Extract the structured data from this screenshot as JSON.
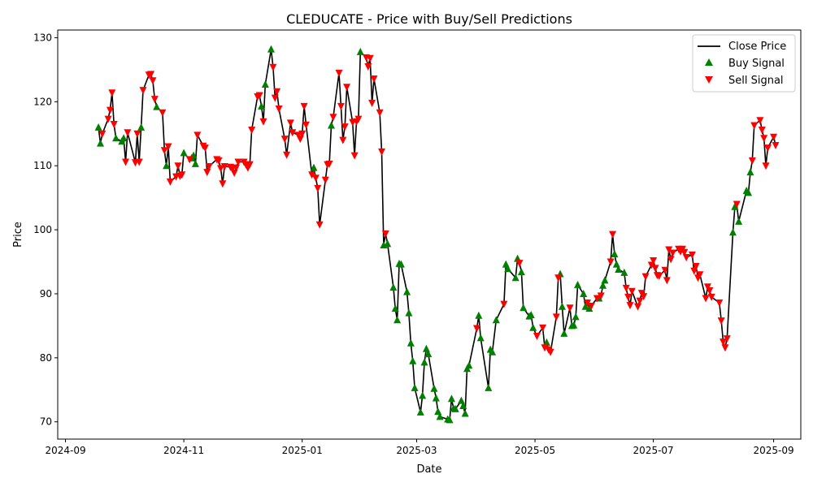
{
  "chart_data": {
    "type": "line",
    "title": "CLEDUCATE - Price with Buy/Sell Predictions",
    "xlabel": "Date",
    "ylabel": "Price",
    "xlim": [
      "2024-08-28",
      "2025-09-15"
    ],
    "ylim": [
      67.3,
      131.2
    ],
    "x_ticks": [
      {
        "date": "2024-09-01",
        "label": "2024-09"
      },
      {
        "date": "2024-11-01",
        "label": "2024-11"
      },
      {
        "date": "2025-01-01",
        "label": "2025-01"
      },
      {
        "date": "2025-03-01",
        "label": "2025-03"
      },
      {
        "date": "2025-05-01",
        "label": "2025-05"
      },
      {
        "date": "2025-07-01",
        "label": "2025-07"
      },
      {
        "date": "2025-09-01",
        "label": "2025-09"
      }
    ],
    "y_ticks": [
      70,
      80,
      90,
      100,
      110,
      120,
      130
    ],
    "grid": false,
    "legend_position": "top-right",
    "series": [
      {
        "name": "Close Price",
        "kind": "line",
        "color": "#000000"
      },
      {
        "name": "Buy Signal",
        "kind": "marker",
        "marker": "triangle-up",
        "color": "#008000"
      },
      {
        "name": "Sell Signal",
        "kind": "marker",
        "marker": "triangle-down",
        "color": "#ff0000"
      }
    ],
    "points": [
      [
        "2024-09-18",
        116.0,
        "B"
      ],
      [
        "2024-09-19",
        113.5,
        "B"
      ],
      [
        "2024-09-20",
        115.0,
        "S"
      ],
      [
        "2024-09-23",
        117.3,
        "S"
      ],
      [
        "2024-09-24",
        118.7,
        "S"
      ],
      [
        "2024-09-25",
        121.4,
        "S"
      ],
      [
        "2024-09-26",
        116.5,
        "S"
      ],
      [
        "2024-09-27",
        114.3,
        "B"
      ],
      [
        "2024-09-30",
        113.8,
        "B"
      ],
      [
        "2024-10-01",
        114.3,
        "B"
      ],
      [
        "2024-10-02",
        110.6,
        "S"
      ],
      [
        "2024-10-03",
        115.2,
        "S"
      ],
      [
        "2024-10-07",
        110.5,
        "S"
      ],
      [
        "2024-10-08",
        115.0,
        "S"
      ],
      [
        "2024-10-09",
        110.6,
        "S"
      ],
      [
        "2024-10-10",
        116.0,
        "B"
      ],
      [
        "2024-10-11",
        121.8,
        "S"
      ],
      [
        "2024-10-14",
        124.2,
        "S"
      ],
      [
        "2024-10-15",
        124.3,
        "S"
      ],
      [
        "2024-10-16",
        123.3,
        "S"
      ],
      [
        "2024-10-17",
        120.4,
        "S"
      ],
      [
        "2024-10-18",
        119.2,
        "B"
      ],
      [
        "2024-10-21",
        118.3,
        "S"
      ],
      [
        "2024-10-22",
        112.4,
        "S"
      ],
      [
        "2024-10-23",
        110.0,
        "B"
      ],
      [
        "2024-10-24",
        113.0,
        "S"
      ],
      [
        "2024-10-25",
        107.5,
        "S"
      ],
      [
        "2024-10-28",
        108.3,
        "S"
      ],
      [
        "2024-10-29",
        110.0,
        "S"
      ],
      [
        "2024-10-30",
        108.4,
        "S"
      ],
      [
        "2024-10-31",
        108.6,
        "S"
      ],
      [
        "2024-11-01",
        112.0,
        "B"
      ],
      [
        "2024-11-04",
        111.0,
        "S"
      ],
      [
        "2024-11-05",
        111.2,
        "B"
      ],
      [
        "2024-11-06",
        111.6,
        "B"
      ],
      [
        "2024-11-07",
        110.3,
        "B"
      ],
      [
        "2024-11-08",
        114.8,
        "S"
      ],
      [
        "2024-11-11",
        113.1,
        "S"
      ],
      [
        "2024-11-12",
        112.8,
        "S"
      ],
      [
        "2024-11-13",
        109.0,
        "S"
      ],
      [
        "2024-11-14",
        109.9,
        "S"
      ],
      [
        "2024-11-18",
        111.0,
        "S"
      ],
      [
        "2024-11-19",
        110.8,
        "S"
      ],
      [
        "2024-11-20",
        109.6,
        "S"
      ],
      [
        "2024-11-21",
        107.2,
        "S"
      ],
      [
        "2024-11-22",
        109.9,
        "S"
      ],
      [
        "2024-11-25",
        109.8,
        "S"
      ],
      [
        "2024-11-26",
        109.5,
        "S"
      ],
      [
        "2024-11-27",
        108.9,
        "S"
      ],
      [
        "2024-11-28",
        109.7,
        "S"
      ],
      [
        "2024-11-29",
        110.6,
        "S"
      ],
      [
        "2024-12-02",
        110.6,
        "S"
      ],
      [
        "2024-12-03",
        110.2,
        "S"
      ],
      [
        "2024-12-04",
        109.7,
        "S"
      ],
      [
        "2024-12-05",
        110.2,
        "S"
      ],
      [
        "2024-12-06",
        115.6,
        "S"
      ],
      [
        "2024-12-09",
        120.8,
        "S"
      ],
      [
        "2024-12-10",
        121.0,
        "S"
      ],
      [
        "2024-12-11",
        119.3,
        "B"
      ],
      [
        "2024-12-12",
        116.9,
        "S"
      ],
      [
        "2024-12-13",
        122.7,
        "B"
      ],
      [
        "2024-12-16",
        128.2,
        "B"
      ],
      [
        "2024-12-17",
        125.4,
        "S"
      ],
      [
        "2024-12-18",
        120.6,
        "S"
      ],
      [
        "2024-12-19",
        121.6,
        "S"
      ],
      [
        "2024-12-20",
        118.9,
        "S"
      ],
      [
        "2024-12-23",
        114.2,
        "S"
      ],
      [
        "2024-12-24",
        111.7,
        "S"
      ],
      [
        "2024-12-26",
        116.7,
        "S"
      ],
      [
        "2024-12-27",
        115.2,
        "S"
      ],
      [
        "2024-12-30",
        114.8,
        "S"
      ],
      [
        "2024-12-31",
        114.2,
        "S"
      ],
      [
        "2025-01-01",
        115.0,
        "S"
      ],
      [
        "2025-01-02",
        119.3,
        "S"
      ],
      [
        "2025-01-03",
        116.4,
        "S"
      ],
      [
        "2025-01-06",
        108.6,
        "S"
      ],
      [
        "2025-01-07",
        109.7,
        "B"
      ],
      [
        "2025-01-08",
        108.1,
        "S"
      ],
      [
        "2025-01-09",
        106.5,
        "S"
      ],
      [
        "2025-01-10",
        100.8,
        "S"
      ],
      [
        "2025-01-13",
        107.8,
        "S"
      ],
      [
        "2025-01-14",
        110.2,
        "S"
      ],
      [
        "2025-01-15",
        110.3,
        "S"
      ],
      [
        "2025-01-16",
        116.3,
        "B"
      ],
      [
        "2025-01-17",
        117.6,
        "S"
      ],
      [
        "2025-01-20",
        124.5,
        "S"
      ],
      [
        "2025-01-21",
        119.3,
        "S"
      ],
      [
        "2025-01-22",
        114.0,
        "S"
      ],
      [
        "2025-01-23",
        116.1,
        "S"
      ],
      [
        "2025-01-24",
        122.3,
        "S"
      ],
      [
        "2025-01-27",
        116.8,
        "S"
      ],
      [
        "2025-01-28",
        111.6,
        "S"
      ],
      [
        "2025-01-29",
        116.9,
        "S"
      ],
      [
        "2025-01-30",
        117.3,
        "S"
      ],
      [
        "2025-01-31",
        127.8,
        "B"
      ],
      [
        "2025-02-03",
        126.9,
        "S"
      ],
      [
        "2025-02-04",
        125.5,
        "S"
      ],
      [
        "2025-02-05",
        126.8,
        "S"
      ],
      [
        "2025-02-06",
        119.8,
        "S"
      ],
      [
        "2025-02-07",
        123.6,
        "S"
      ],
      [
        "2025-02-10",
        118.3,
        "S"
      ],
      [
        "2025-02-11",
        112.2,
        "S"
      ],
      [
        "2025-02-12",
        97.6,
        "B"
      ],
      [
        "2025-02-13",
        99.4,
        "S"
      ],
      [
        "2025-02-14",
        97.8,
        "B"
      ],
      [
        "2025-02-17",
        91.0,
        "B"
      ],
      [
        "2025-02-18",
        87.7,
        "B"
      ],
      [
        "2025-02-19",
        85.9,
        "B"
      ],
      [
        "2025-02-20",
        94.7,
        "B"
      ],
      [
        "2025-02-21",
        94.6,
        "B"
      ],
      [
        "2025-02-24",
        90.3,
        "B"
      ],
      [
        "2025-02-25",
        87.0,
        "B"
      ],
      [
        "2025-02-26",
        82.3,
        "B"
      ],
      [
        "2025-02-27",
        79.5,
        "B"
      ],
      [
        "2025-02-28",
        75.3,
        "B"
      ],
      [
        "2025-03-03",
        71.5,
        "B"
      ],
      [
        "2025-03-04",
        74.1,
        "B"
      ],
      [
        "2025-03-05",
        79.3,
        "B"
      ],
      [
        "2025-03-06",
        81.4,
        "B"
      ],
      [
        "2025-03-07",
        80.6,
        "B"
      ],
      [
        "2025-03-10",
        75.2,
        "B"
      ],
      [
        "2025-03-11",
        73.7,
        "B"
      ],
      [
        "2025-03-12",
        71.6,
        "B"
      ],
      [
        "2025-03-13",
        70.8,
        "B"
      ],
      [
        "2025-03-17",
        70.4,
        "B"
      ],
      [
        "2025-03-18",
        70.3,
        "B"
      ],
      [
        "2025-03-19",
        73.6,
        "B"
      ],
      [
        "2025-03-20",
        72.1,
        "B"
      ],
      [
        "2025-03-21",
        72.0,
        "B"
      ],
      [
        "2025-03-24",
        73.3,
        "B"
      ],
      [
        "2025-03-25",
        72.5,
        "B"
      ],
      [
        "2025-03-26",
        71.3,
        "B"
      ],
      [
        "2025-03-27",
        78.3,
        "B"
      ],
      [
        "2025-03-28",
        78.8,
        "B"
      ],
      [
        "2025-04-01",
        84.6,
        "S"
      ],
      [
        "2025-04-02",
        86.6,
        "B"
      ],
      [
        "2025-04-03",
        83.1,
        "B"
      ],
      [
        "2025-04-07",
        75.3,
        "B"
      ],
      [
        "2025-04-08",
        81.3,
        "B"
      ],
      [
        "2025-04-09",
        80.9,
        "B"
      ],
      [
        "2025-04-11",
        85.9,
        "B"
      ],
      [
        "2025-04-15",
        88.4,
        "S"
      ],
      [
        "2025-04-16",
        94.6,
        "B"
      ],
      [
        "2025-04-17",
        93.9,
        "B"
      ],
      [
        "2025-04-21",
        92.5,
        "B"
      ],
      [
        "2025-04-22",
        95.5,
        "B"
      ],
      [
        "2025-04-23",
        94.8,
        "S"
      ],
      [
        "2025-04-24",
        93.4,
        "B"
      ],
      [
        "2025-04-25",
        87.8,
        "B"
      ],
      [
        "2025-04-28",
        86.5,
        "B"
      ],
      [
        "2025-04-29",
        86.7,
        "B"
      ],
      [
        "2025-04-30",
        84.7,
        "B"
      ],
      [
        "2025-05-02",
        83.4,
        "S"
      ],
      [
        "2025-05-05",
        84.7,
        "S"
      ],
      [
        "2025-05-06",
        81.6,
        "S"
      ],
      [
        "2025-05-07",
        82.4,
        "B"
      ],
      [
        "2025-05-08",
        81.3,
        "S"
      ],
      [
        "2025-05-09",
        80.9,
        "S"
      ],
      [
        "2025-05-12",
        86.4,
        "S"
      ],
      [
        "2025-05-13",
        92.5,
        "S"
      ],
      [
        "2025-05-14",
        93.1,
        "B"
      ],
      [
        "2025-05-15",
        88.0,
        "B"
      ],
      [
        "2025-05-16",
        83.8,
        "B"
      ],
      [
        "2025-05-19",
        87.8,
        "S"
      ],
      [
        "2025-05-20",
        85.0,
        "B"
      ],
      [
        "2025-05-21",
        85.1,
        "B"
      ],
      [
        "2025-05-22",
        86.4,
        "B"
      ],
      [
        "2025-05-23",
        91.4,
        "B"
      ],
      [
        "2025-05-26",
        90.0,
        "B"
      ],
      [
        "2025-05-27",
        88.0,
        "B"
      ],
      [
        "2025-05-28",
        88.6,
        "S"
      ],
      [
        "2025-05-29",
        87.7,
        "B"
      ],
      [
        "2025-05-30",
        88.1,
        "S"
      ],
      [
        "2025-06-02",
        89.3,
        "S"
      ],
      [
        "2025-06-03",
        89.3,
        "B"
      ],
      [
        "2025-06-04",
        89.7,
        "S"
      ],
      [
        "2025-06-05",
        91.3,
        "B"
      ],
      [
        "2025-06-06",
        92.1,
        "B"
      ],
      [
        "2025-06-09",
        95.0,
        "S"
      ],
      [
        "2025-06-10",
        99.3,
        "S"
      ],
      [
        "2025-06-11",
        96.2,
        "B"
      ],
      [
        "2025-06-12",
        94.6,
        "B"
      ],
      [
        "2025-06-13",
        93.8,
        "B"
      ],
      [
        "2025-06-16",
        93.3,
        "B"
      ],
      [
        "2025-06-17",
        90.9,
        "S"
      ],
      [
        "2025-06-18",
        89.5,
        "S"
      ],
      [
        "2025-06-19",
        88.2,
        "S"
      ],
      [
        "2025-06-20",
        90.4,
        "S"
      ],
      [
        "2025-06-23",
        88.0,
        "S"
      ],
      [
        "2025-06-24",
        88.9,
        "S"
      ],
      [
        "2025-06-25",
        90.1,
        "S"
      ],
      [
        "2025-06-26",
        89.6,
        "S"
      ],
      [
        "2025-06-27",
        92.7,
        "S"
      ],
      [
        "2025-06-30",
        94.5,
        "S"
      ],
      [
        "2025-07-01",
        95.2,
        "S"
      ],
      [
        "2025-07-02",
        94.0,
        "S"
      ],
      [
        "2025-07-03",
        92.9,
        "S"
      ],
      [
        "2025-07-04",
        92.8,
        "S"
      ],
      [
        "2025-07-07",
        93.7,
        "S"
      ],
      [
        "2025-07-08",
        92.1,
        "S"
      ],
      [
        "2025-07-09",
        96.9,
        "S"
      ],
      [
        "2025-07-10",
        95.4,
        "S"
      ],
      [
        "2025-07-11",
        96.4,
        "S"
      ],
      [
        "2025-07-14",
        97.0,
        "S"
      ],
      [
        "2025-07-15",
        96.6,
        "S"
      ],
      [
        "2025-07-16",
        97.0,
        "S"
      ],
      [
        "2025-07-17",
        96.5,
        "S"
      ],
      [
        "2025-07-18",
        95.7,
        "S"
      ],
      [
        "2025-07-21",
        96.1,
        "S"
      ],
      [
        "2025-07-22",
        93.6,
        "S"
      ],
      [
        "2025-07-23",
        94.3,
        "S"
      ],
      [
        "2025-07-24",
        92.5,
        "S"
      ],
      [
        "2025-07-25",
        93.0,
        "S"
      ],
      [
        "2025-07-28",
        89.3,
        "S"
      ],
      [
        "2025-07-29",
        91.1,
        "S"
      ],
      [
        "2025-07-30",
        90.5,
        "S"
      ],
      [
        "2025-07-31",
        89.5,
        "S"
      ],
      [
        "2025-08-04",
        88.6,
        "S"
      ],
      [
        "2025-08-05",
        85.8,
        "S"
      ],
      [
        "2025-08-06",
        82.5,
        "S"
      ],
      [
        "2025-08-07",
        81.6,
        "S"
      ],
      [
        "2025-08-08",
        83.0,
        "S"
      ],
      [
        "2025-08-11",
        99.6,
        "B"
      ],
      [
        "2025-08-12",
        103.6,
        "B"
      ],
      [
        "2025-08-13",
        104.0,
        "S"
      ],
      [
        "2025-08-14",
        101.3,
        "B"
      ],
      [
        "2025-08-18",
        106.1,
        "B"
      ],
      [
        "2025-08-19",
        105.8,
        "B"
      ],
      [
        "2025-08-20",
        109.0,
        "B"
      ],
      [
        "2025-08-21",
        110.8,
        "S"
      ],
      [
        "2025-08-22",
        116.3,
        "S"
      ],
      [
        "2025-08-25",
        117.1,
        "S"
      ],
      [
        "2025-08-26",
        115.6,
        "S"
      ],
      [
        "2025-08-27",
        114.3,
        "S"
      ],
      [
        "2025-08-28",
        110.0,
        "S"
      ],
      [
        "2025-08-29",
        112.8,
        "S"
      ],
      [
        "2025-09-01",
        114.5,
        "S"
      ],
      [
        "2025-09-02",
        113.2,
        "S"
      ]
    ]
  }
}
